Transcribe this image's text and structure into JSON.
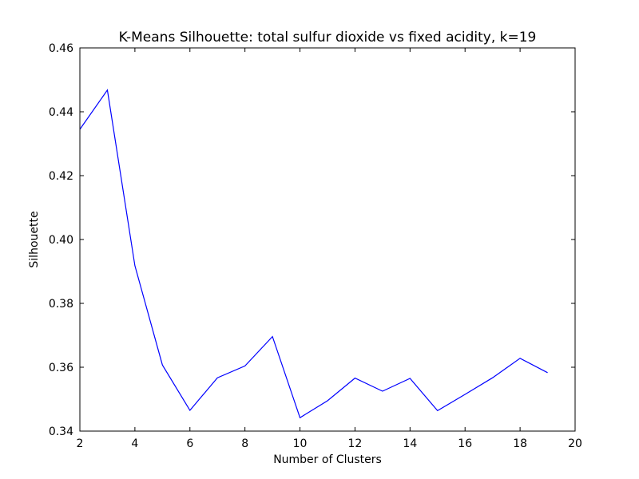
{
  "chart_data": {
    "type": "line",
    "title": "K-Means Silhouette: total sulfur dioxide vs fixed acidity, k=19",
    "xlabel": "Number of Clusters",
    "ylabel": "Silhouette",
    "xlim": [
      2,
      20
    ],
    "ylim": [
      0.34,
      0.46
    ],
    "x_ticks": [
      "2",
      "4",
      "6",
      "8",
      "10",
      "12",
      "14",
      "16",
      "18",
      "20"
    ],
    "y_ticks": [
      "0.34",
      "0.36",
      "0.38",
      "0.40",
      "0.42",
      "0.44",
      "0.46"
    ],
    "grid": false,
    "legend": "none",
    "series": [
      {
        "color": "#0000ff",
        "x": [
          2,
          3,
          4,
          5,
          6,
          7,
          8,
          9,
          10,
          11,
          12,
          13,
          14,
          15,
          16,
          17,
          18,
          19
        ],
        "y": [
          0.4345,
          0.4468,
          0.3918,
          0.3607,
          0.3465,
          0.3567,
          0.3604,
          0.3696,
          0.3442,
          0.3495,
          0.3566,
          0.3525,
          0.3565,
          0.3464,
          0.3515,
          0.3567,
          0.3628,
          0.3583
        ]
      }
    ]
  }
}
